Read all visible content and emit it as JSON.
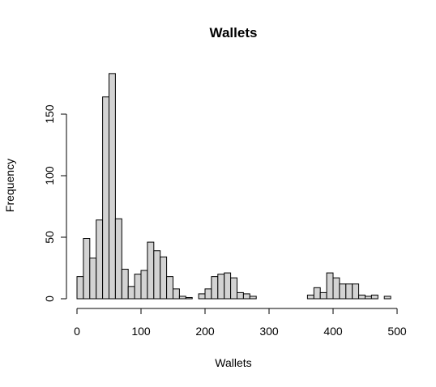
{
  "chart_data": {
    "type": "bar",
    "subtype": "histogram",
    "title": "Wallets",
    "xlabel": "Wallets",
    "ylabel": "Frequency",
    "bin_width": 10,
    "bin_start": 0,
    "xlim": [
      0,
      500
    ],
    "ylim": [
      0,
      190
    ],
    "x_ticks": [
      0,
      100,
      200,
      300,
      400,
      500
    ],
    "y_ticks": [
      0,
      50,
      100,
      150
    ],
    "values": [
      18,
      49,
      33,
      64,
      164,
      183,
      65,
      24,
      10,
      20,
      23,
      46,
      39,
      34,
      18,
      8,
      2,
      1,
      0,
      4,
      8,
      18,
      20,
      21,
      17,
      5,
      4,
      2,
      0,
      0,
      0,
      0,
      0,
      0,
      0,
      0,
      3,
      9,
      5,
      21,
      17,
      12,
      12,
      12,
      3,
      2,
      3,
      0,
      2,
      0
    ],
    "bar_fill": "#d3d3d3",
    "bar_stroke": "#000000",
    "grid": false,
    "legend": "none"
  }
}
